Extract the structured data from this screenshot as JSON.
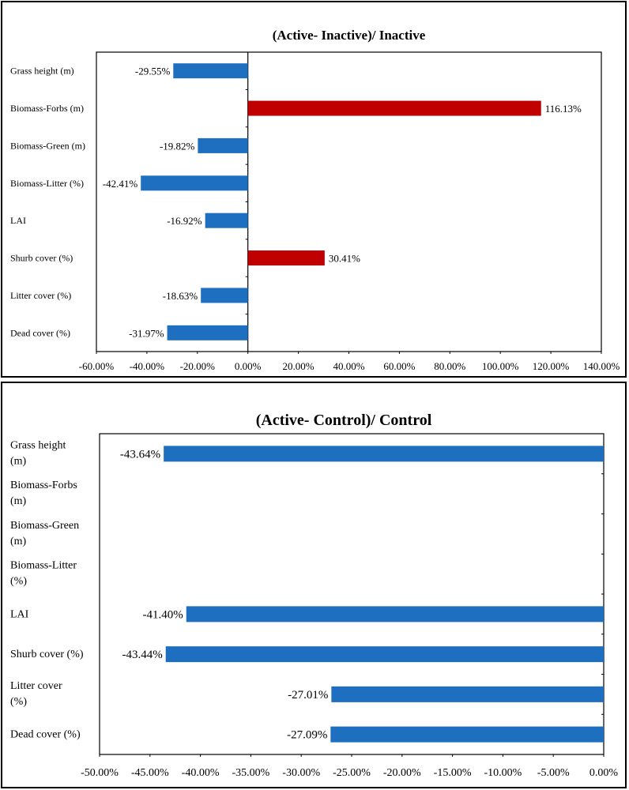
{
  "chart_data": [
    {
      "type": "bar",
      "orientation": "horizontal",
      "title": "(Active- Inactive)/ Inactive",
      "xlabel": "",
      "ylabel": "",
      "xlim": [
        -60,
        140
      ],
      "x_ticks": [
        "-60.00%",
        "-40.00%",
        "-20.00%",
        "0.00%",
        "20.00%",
        "40.00%",
        "60.00%",
        "80.00%",
        "100.00%",
        "120.00%",
        "140.00%"
      ],
      "categories": [
        "Grass height (m)",
        "Biomass-Forbs (m)",
        "Biomass-Green (m)",
        "Biomass-Litter (%)",
        "LAI",
        "Shurb cover (%)",
        "Litter cover (%)",
        "Dead cover (%)"
      ],
      "values": [
        -29.55,
        116.13,
        -19.82,
        -42.41,
        -16.92,
        30.41,
        -18.63,
        -31.97
      ],
      "value_labels": [
        "-29.55%",
        "116.13%",
        "-19.82%",
        "-42.41%",
        "-16.92%",
        "30.41%",
        "-18.63%",
        "-31.97%"
      ],
      "colors": {
        "negative": "#1f6fc0",
        "positive": "#c00000"
      }
    },
    {
      "type": "bar",
      "orientation": "horizontal",
      "title": "(Active- Control)/ Control",
      "xlabel": "",
      "ylabel": "",
      "xlim": [
        -50,
        0
      ],
      "x_ticks": [
        "-50.00%",
        "-45.00%",
        "-40.00%",
        "-35.00%",
        "-30.00%",
        "-25.00%",
        "-20.00%",
        "-15.00%",
        "-10.00%",
        "-5.00%",
        "0.00%"
      ],
      "categories": [
        "Grass height (m)",
        "Biomass-Forbs (m)",
        "Biomass-Green (m)",
        "Biomass-Litter (%)",
        "LAI",
        "Shurb cover (%)",
        "Litter cover (%)",
        "Dead cover (%)"
      ],
      "values": [
        -43.64,
        null,
        null,
        null,
        -41.4,
        -43.44,
        -27.01,
        -27.09
      ],
      "value_labels": [
        "-43.64%",
        "",
        "",
        "",
        "-41.40%",
        "-43.44%",
        "-27.01%",
        "-27.09%"
      ],
      "colors": {
        "negative": "#1f6fc0",
        "positive": "#c00000"
      }
    }
  ]
}
